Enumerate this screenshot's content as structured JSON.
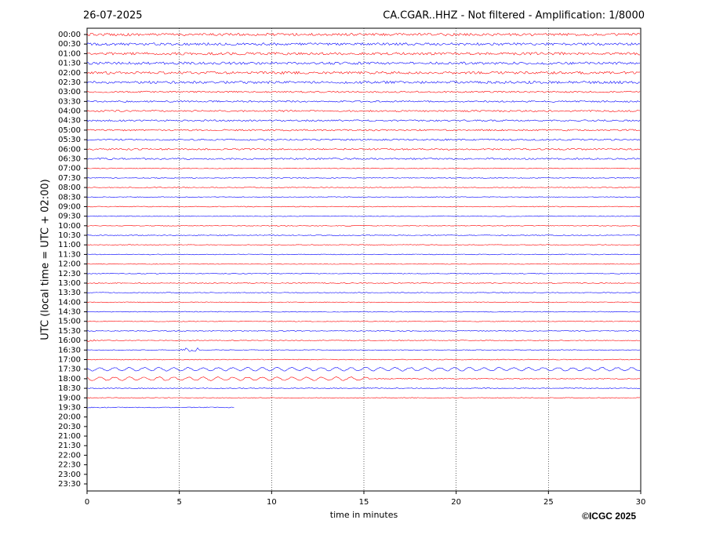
{
  "chart_data": {
    "type": "helicorder",
    "date": "26-07-2025",
    "title": "CA.CGAR..HHZ - Not filtered - Amplification: 1/8000",
    "ylabel": "UTC (local time = UTC + 02:00)",
    "xlabel": "time in minutes",
    "credit": "©ICGC 2025",
    "categories": [
      "00:00",
      "00:30",
      "01:00",
      "01:30",
      "02:00",
      "02:30",
      "03:00",
      "03:30",
      "04:00",
      "04:30",
      "05:00",
      "05:30",
      "06:00",
      "06:30",
      "07:00",
      "07:30",
      "08:00",
      "08:30",
      "09:00",
      "09:30",
      "10:00",
      "10:30",
      "11:00",
      "11:30",
      "12:00",
      "12:30",
      "13:00",
      "13:30",
      "14:00",
      "14:30",
      "15:00",
      "15:30",
      "16:00",
      "16:30",
      "17:00",
      "17:30",
      "18:00",
      "18:30",
      "19:00",
      "19:30",
      "20:00",
      "20:30",
      "21:00",
      "21:30",
      "22:00",
      "22:30",
      "23:00",
      "23:30"
    ],
    "colors": [
      "#ff0000",
      "#0000ff"
    ],
    "trace_rows": 40,
    "last_trace_end": 8,
    "xlim": [
      0,
      30
    ],
    "xticks": [
      0,
      5,
      10,
      15,
      20,
      25,
      30
    ],
    "grid": true
  }
}
